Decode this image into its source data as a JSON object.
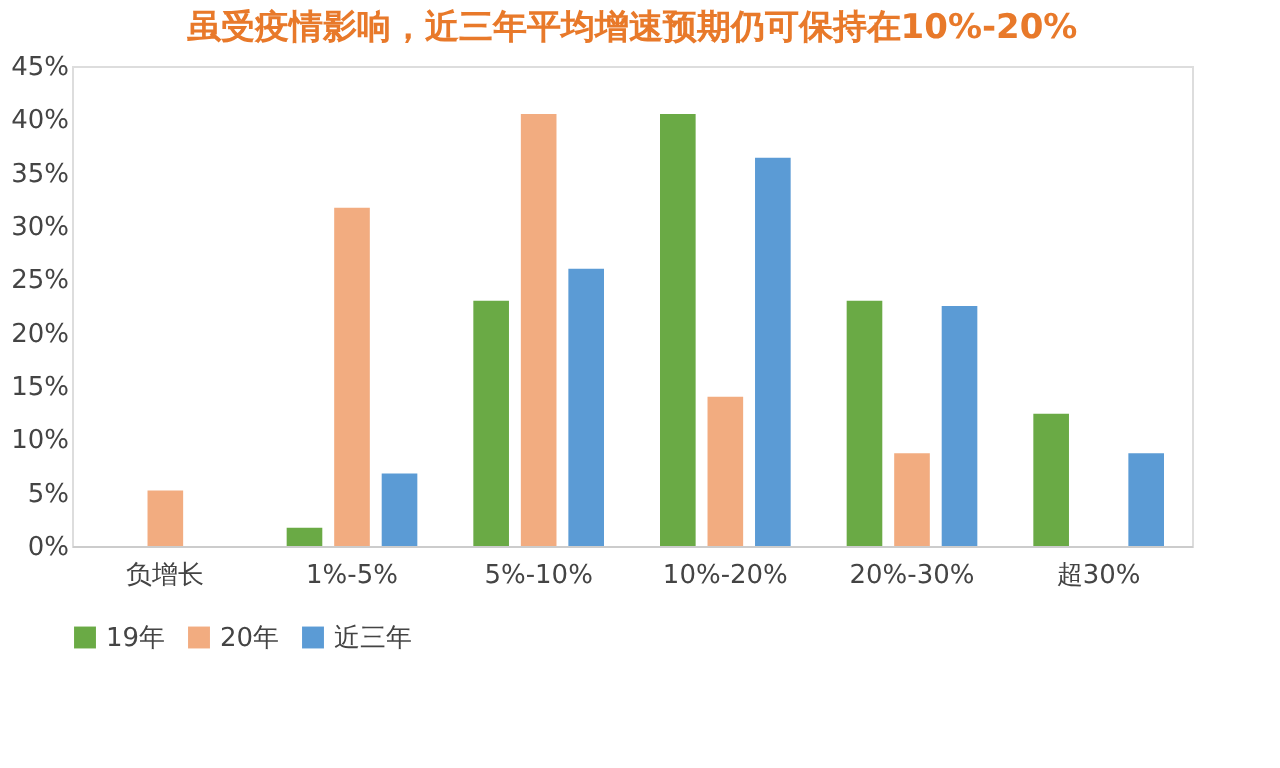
{
  "chart_data": {
    "type": "bar",
    "title": "虽受疫情影响，近三年平均增速预期仍可保持在10%-20%",
    "categories": [
      "负增长",
      "1%-5%",
      "5%-10%",
      "10%-20%",
      "20%-30%",
      "超30%"
    ],
    "series": [
      {
        "name": "19年",
        "color": "#6aaa45",
        "values": [
          0,
          1.7,
          23.0,
          40.5,
          23.0,
          12.4
        ]
      },
      {
        "name": "20年",
        "color": "#f2ac80",
        "values": [
          5.2,
          31.7,
          40.5,
          14.0,
          8.7,
          0
        ]
      },
      {
        "name": "近三年",
        "color": "#5b9bd5",
        "values": [
          0,
          6.8,
          26.0,
          36.4,
          22.5,
          8.7
        ]
      }
    ],
    "ylim": [
      0,
      45
    ],
    "yticks": [
      {
        "value": 0,
        "label": "0%"
      },
      {
        "value": 5,
        "label": "5%"
      },
      {
        "value": 10,
        "label": "10%"
      },
      {
        "value": 15,
        "label": "15%"
      },
      {
        "value": 20,
        "label": "20%"
      },
      {
        "value": 25,
        "label": "25%"
      },
      {
        "value": 30,
        "label": "30%"
      },
      {
        "value": 35,
        "label": "35%"
      },
      {
        "value": 40,
        "label": "40%"
      },
      {
        "value": 45,
        "label": "45%"
      }
    ],
    "grid": false,
    "legend": "bottom"
  }
}
